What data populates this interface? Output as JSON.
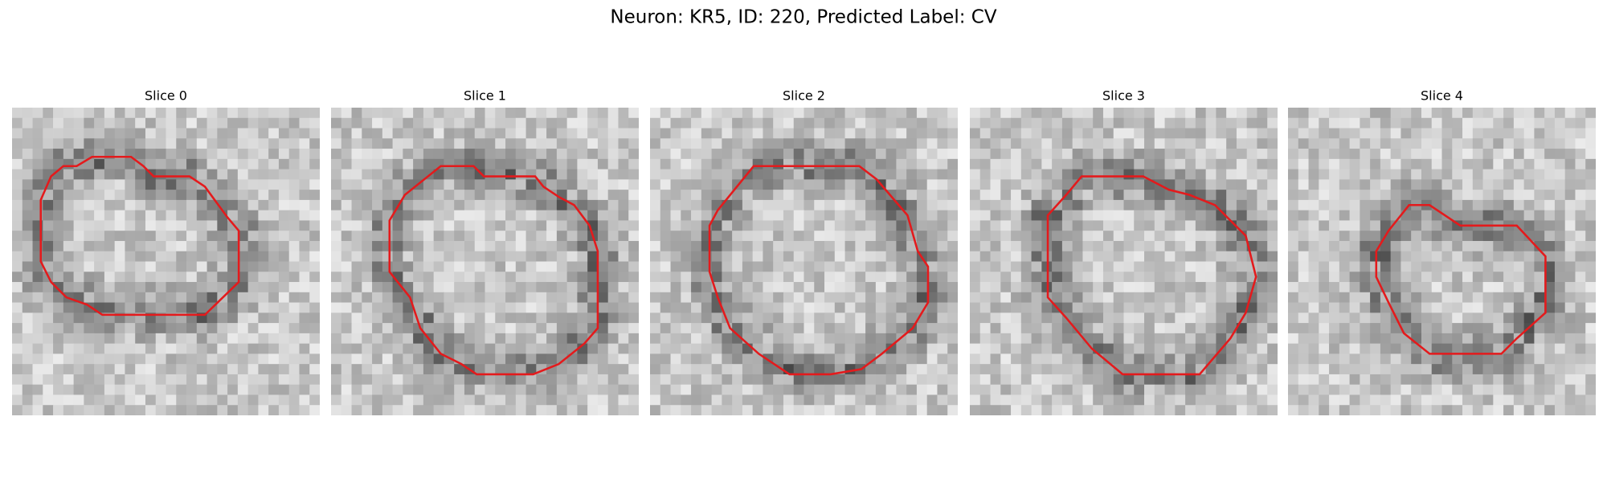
{
  "header": {
    "title": "Neuron: KR5, ID: 220, Predicted Label: CV"
  },
  "panels": [
    {
      "title": "Slice 0"
    },
    {
      "title": "Slice 1"
    },
    {
      "title": "Slice 2"
    },
    {
      "title": "Slice 3"
    },
    {
      "title": "Slice 4"
    }
  ]
}
